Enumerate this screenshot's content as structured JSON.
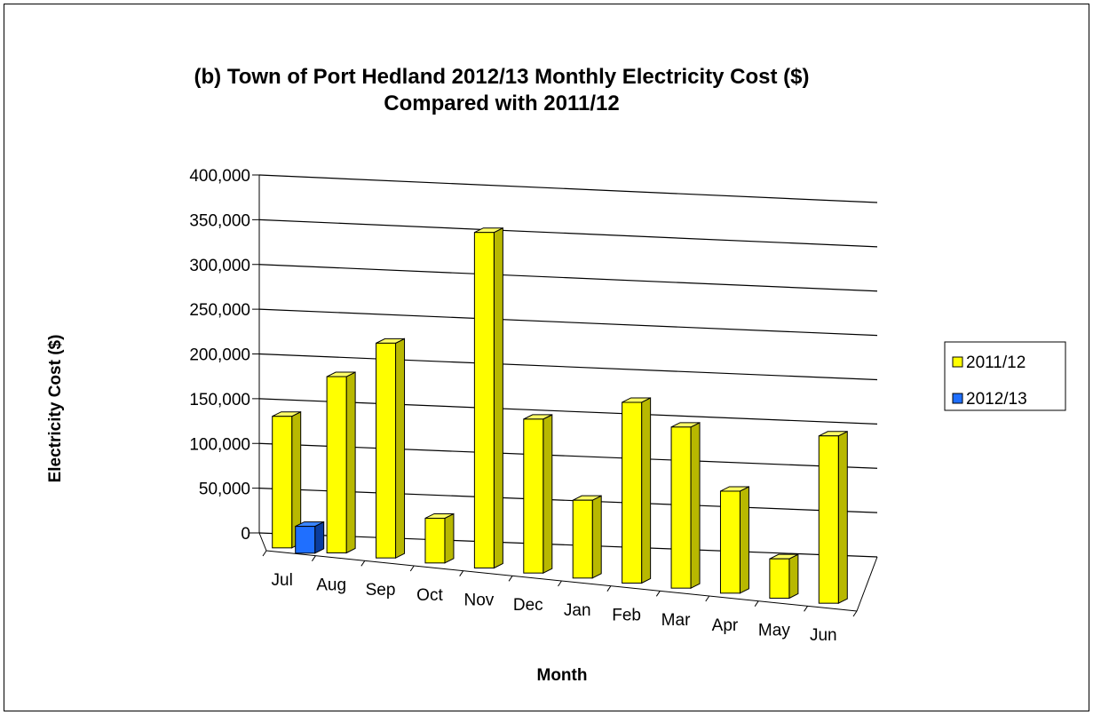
{
  "chart_data": {
    "type": "bar",
    "title_line1": "(b)  Town of Port Hedland 2012/13 Monthly Electricity Cost ($)",
    "title_line2": "Compared with 2011/12",
    "xlabel": "Month",
    "ylabel": "Electricity Cost ($)",
    "ylim": [
      0,
      400000
    ],
    "yticks": [
      "0",
      "50,000",
      "100,000",
      "150,000",
      "200,000",
      "250,000",
      "300,000",
      "350,000",
      "400,000"
    ],
    "categories": [
      "Jul",
      "Aug",
      "Sep",
      "Oct",
      "Nov",
      "Dec",
      "Jan",
      "Feb",
      "Mar",
      "Apr",
      "May",
      "Jun"
    ],
    "series": [
      {
        "name": "2011/12",
        "color": "#ffff00",
        "values": [
          147000,
          197000,
          240000,
          50000,
          375000,
          172000,
          87000,
          202000,
          180000,
          114000,
          44000,
          187000
        ]
      },
      {
        "name": "2012/13",
        "color": "#1f6fff",
        "values": [
          30000,
          null,
          null,
          null,
          null,
          null,
          null,
          null,
          null,
          null,
          null,
          null
        ]
      }
    ],
    "legend_position": "right",
    "grid": true
  }
}
